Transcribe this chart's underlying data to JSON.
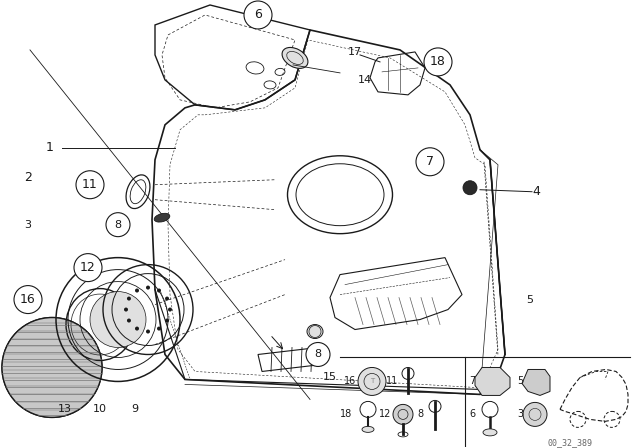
{
  "bg_color": "#ffffff",
  "fig_width": 6.4,
  "fig_height": 4.48,
  "dpi": 100,
  "part_number": "00_32_389",
  "line_color": "#1a1a1a",
  "text_color": "#1a1a1a",
  "dot_color": "#222222",
  "gray_fill": "#c8c8c8",
  "light_gray": "#e0e0e0",
  "mid_gray": "#a0a0a0"
}
